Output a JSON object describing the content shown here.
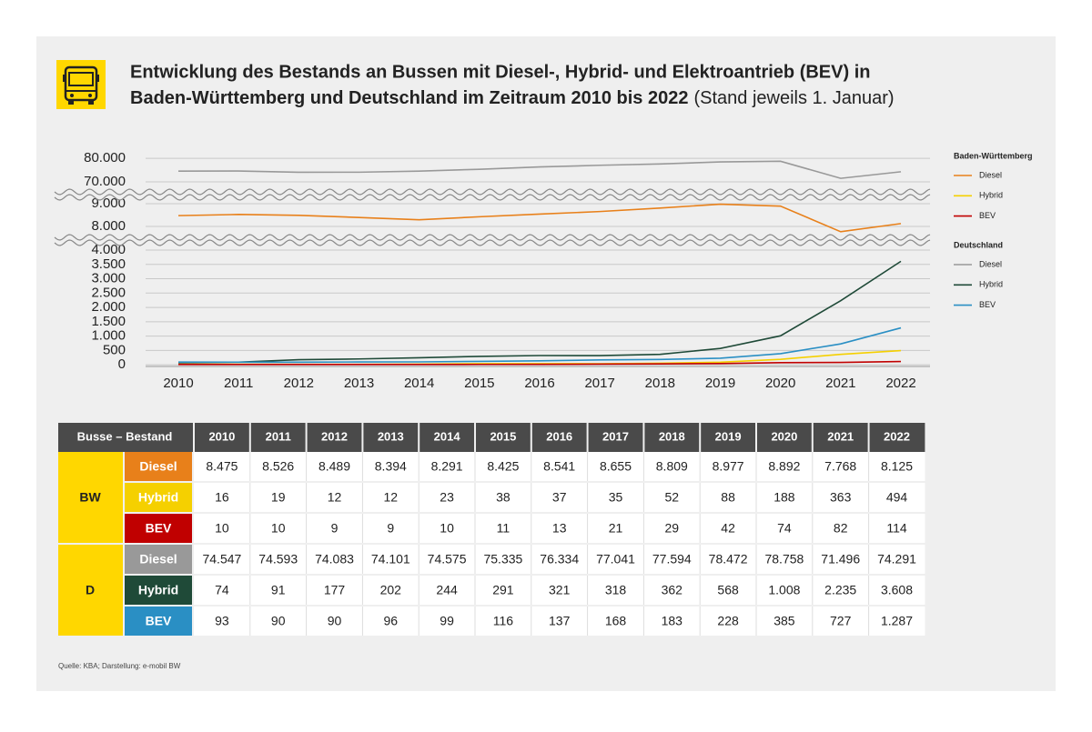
{
  "chart_data": {
    "type": "line",
    "title": [
      "Entwicklung des Bestands an Bussen mit Diesel-, Hybrid- und Elektroantrieb (BEV) in",
      "Baden-Württemberg und Deutschland im Zeitraum 2010 bis 2022"
    ],
    "subtitle": "(Stand jeweils 1. Januar)",
    "x": [
      2010,
      2011,
      2012,
      2013,
      2014,
      2015,
      2016,
      2017,
      2018,
      2019,
      2020,
      2021,
      2022
    ],
    "y_segments": [
      {
        "ylim": [
          -60,
          4350
        ],
        "yticks": [
          0,
          500,
          {
            "value": 1000,
            "label": "1.000"
          },
          {
            "value": 1500,
            "label": "1.500"
          },
          {
            "value": 2000,
            "label": "2.000"
          },
          {
            "value": 2500,
            "label": "2.500"
          },
          {
            "value": 3000,
            "label": "3.000"
          },
          {
            "value": 3500,
            "label": "3.500"
          },
          {
            "value": 4000,
            "label": "4.000"
          }
        ]
      },
      {
        "ylim": [
          7400,
          9400
        ],
        "yticks": [
          {
            "value": 8000,
            "label": "8.000"
          },
          {
            "value": 9000,
            "label": "9.000"
          }
        ]
      },
      {
        "ylim": [
          64600,
          83500
        ],
        "yticks": [
          {
            "value": 70000,
            "label": "70.000"
          },
          {
            "value": 80000,
            "label": "80.000"
          }
        ]
      }
    ],
    "grid": true,
    "legend_groups": [
      "Baden-Württemberg",
      "Deutschland"
    ],
    "series": [
      {
        "name": "Diesel",
        "group": 0,
        "segment": 1,
        "color": "#e8801a",
        "values": [
          8475,
          8526,
          8489,
          8394,
          8291,
          8425,
          8541,
          8655,
          8809,
          8977,
          8892,
          7768,
          8125
        ],
        "value_labels": [
          "8.475",
          "8.526",
          "8.489",
          "8.394",
          "8.291",
          "8.425",
          "8.541",
          "8.655",
          "8.809",
          "8.977",
          "8.892",
          "7.768",
          "8.125"
        ]
      },
      {
        "name": "Hybrid",
        "group": 0,
        "segment": 0,
        "color": "#f5d000",
        "values": [
          16,
          19,
          12,
          12,
          23,
          38,
          37,
          35,
          52,
          88,
          188,
          363,
          494
        ]
      },
      {
        "name": "BEV",
        "group": 0,
        "segment": 0,
        "color": "#c00000",
        "values": [
          10,
          10,
          9,
          9,
          10,
          11,
          13,
          21,
          29,
          42,
          74,
          82,
          114
        ]
      },
      {
        "name": "Diesel",
        "group": 1,
        "segment": 2,
        "color": "#999999",
        "values": [
          74547,
          74593,
          74083,
          74101,
          74575,
          75335,
          76334,
          77041,
          77594,
          78472,
          78758,
          71496,
          74291
        ],
        "value_labels": [
          "74.547",
          "74.593",
          "74.083",
          "74.101",
          "74.575",
          "75.335",
          "76.334",
          "77.041",
          "77.594",
          "78.472",
          "78.758",
          "71.496",
          "74.291"
        ]
      },
      {
        "name": "Hybrid",
        "group": 1,
        "segment": 0,
        "color": "#1f4a38",
        "values": [
          74,
          91,
          177,
          202,
          244,
          291,
          321,
          318,
          362,
          568,
          1008,
          2235,
          3608
        ],
        "value_labels": [
          "74",
          "91",
          "177",
          "202",
          "244",
          "291",
          "321",
          "318",
          "362",
          "568",
          "1.008",
          "2.235",
          "3.608"
        ]
      },
      {
        "name": "BEV",
        "group": 1,
        "segment": 0,
        "color": "#2a8fc4",
        "values": [
          93,
          90,
          90,
          96,
          99,
          116,
          137,
          168,
          183,
          228,
          385,
          727,
          1287
        ],
        "value_labels": [
          "93",
          "90",
          "90",
          "96",
          "99",
          "116",
          "137",
          "168",
          "183",
          "228",
          "385",
          "727",
          "1.287"
        ]
      }
    ]
  },
  "table": {
    "header": "Busse – Bestand",
    "groups": [
      "BW",
      "D"
    ]
  },
  "source": "Quelle: KBA; Darstellung: e-mobil BW"
}
